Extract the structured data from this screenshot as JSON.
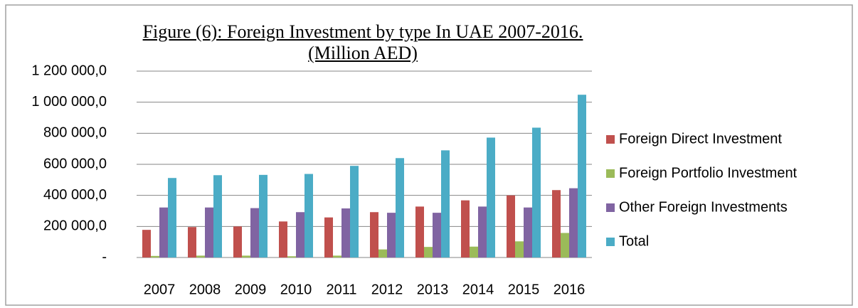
{
  "chart_data": {
    "type": "bar",
    "title": "Figure (6): Foreign Investment by type In UAE 2007-2016. (Million AED)",
    "categories": [
      "2007",
      "2008",
      "2009",
      "2010",
      "2011",
      "2012",
      "2013",
      "2014",
      "2015",
      "2016"
    ],
    "series": [
      {
        "name": "Foreign Direct Investment",
        "color": "#c0504d",
        "values": [
          178000,
          196000,
          200000,
          232000,
          258000,
          292000,
          328000,
          368000,
          400000,
          434000
        ]
      },
      {
        "name": "Foreign Portfolio Investment",
        "color": "#9bbb59",
        "values": [
          10000,
          12000,
          12000,
          8000,
          12000,
          52000,
          68000,
          70000,
          104000,
          158000
        ]
      },
      {
        "name": "Other Foreign Investments",
        "color": "#8064a2",
        "values": [
          322000,
          322000,
          318000,
          292000,
          316000,
          288000,
          288000,
          328000,
          322000,
          446000
        ]
      },
      {
        "name": "Total",
        "color": "#4bacc6",
        "values": [
          512000,
          530000,
          532000,
          538000,
          590000,
          640000,
          690000,
          772000,
          836000,
          1048000
        ]
      }
    ],
    "ylim": [
      0,
      1200000
    ],
    "yticks": [
      {
        "value": 0,
        "label": "-"
      },
      {
        "value": 200000,
        "label": "200 000,0"
      },
      {
        "value": 400000,
        "label": "400 000,0"
      },
      {
        "value": 600000,
        "label": "600 000,0"
      },
      {
        "value": 800000,
        "label": "800 000,0"
      },
      {
        "value": 1000000,
        "label": "1 000 000,0"
      },
      {
        "value": 1200000,
        "label": "1 200 000,0"
      }
    ],
    "grid": true,
    "legend": "right"
  }
}
